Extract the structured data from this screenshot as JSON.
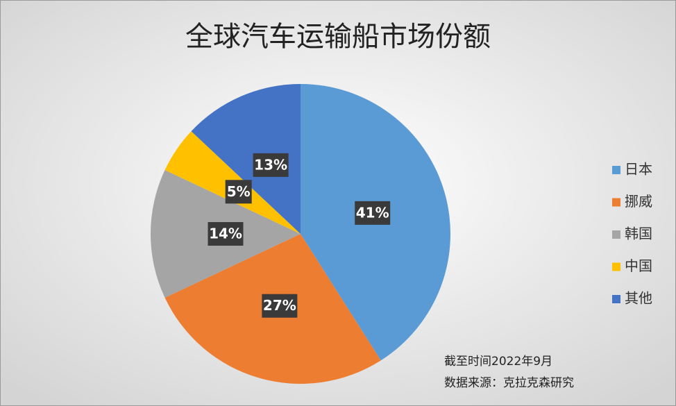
{
  "chart_data": {
    "type": "pie",
    "title": "全球汽车运输船市场份额",
    "categories": [
      "日本",
      "挪威",
      "韩国",
      "中国",
      "其他"
    ],
    "values": [
      41,
      27,
      14,
      5,
      13
    ],
    "value_labels": [
      "41%",
      "27%",
      "14%",
      "5%",
      "13%"
    ],
    "colors": [
      "#5b9bd5",
      "#ed7d31",
      "#a5a5a5",
      "#ffc000",
      "#4472c4"
    ],
    "legend": "right",
    "notes": [
      "截至时间2022年9月",
      "数据来源：克拉克森研究"
    ]
  }
}
